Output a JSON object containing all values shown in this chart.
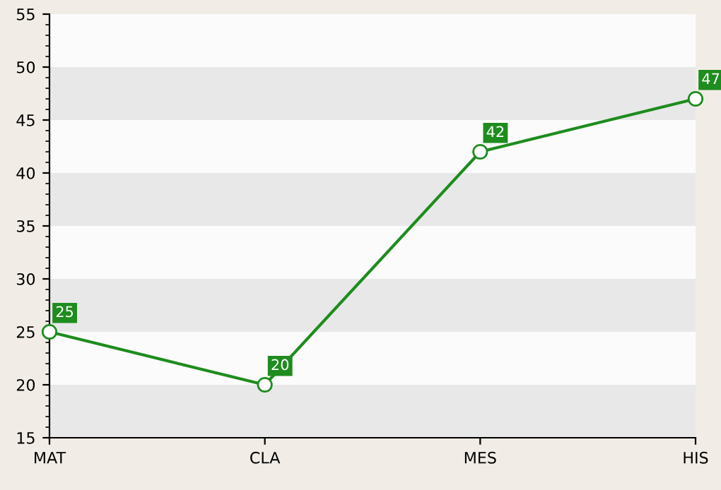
{
  "chart_data": {
    "type": "line",
    "categories": [
      "MAT",
      "CLA",
      "MES",
      "HIS"
    ],
    "series": [
      {
        "color": "#1e8c1e",
        "values": [
          25,
          20,
          42,
          47
        ]
      }
    ],
    "ylim": [
      15,
      55
    ],
    "yticks": [
      15,
      20,
      25,
      30,
      35,
      40,
      45,
      50,
      55
    ],
    "marker": "circle",
    "data_labels": true,
    "grid": false,
    "bands": [
      {
        "axis": "y",
        "from": 15,
        "to": 20,
        "color": "#e8e8e8"
      },
      {
        "axis": "y",
        "from": 25,
        "to": 30,
        "color": "#e8e8e8"
      },
      {
        "axis": "y",
        "from": 35,
        "to": 40,
        "color": "#e8e8e8"
      },
      {
        "axis": "y",
        "from": 45,
        "to": 50,
        "color": "#e8e8e8"
      }
    ]
  }
}
